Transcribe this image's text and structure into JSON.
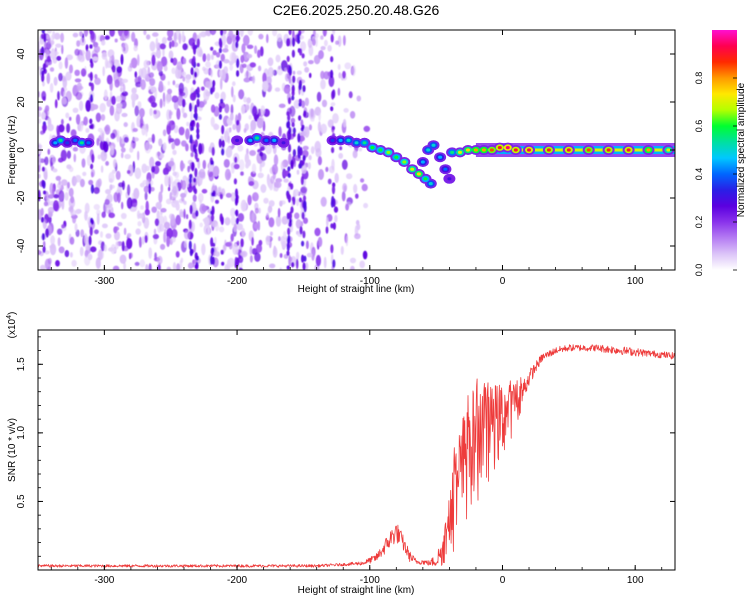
{
  "title": "C2E6.2025.250.20.48.G26",
  "colors": {
    "snr_line": "#ee3b3b",
    "axis": "#000000",
    "background": "#ffffff",
    "colormap": [
      "#ffffff",
      "#dcc4f8",
      "#b57cf3",
      "#8a33eb",
      "#5b00e0",
      "#2a1fe6",
      "#0066ff",
      "#00c8ff",
      "#00e0a0",
      "#00ff30",
      "#b4ff00",
      "#ffe800",
      "#ff9a00",
      "#ff2a00",
      "#ff0050",
      "#ff10d0"
    ]
  },
  "chart_data": [
    {
      "type": "heatmap",
      "name": "spectrogram",
      "title": "C2E6.2025.250.20.48.G26",
      "xlabel": "Height of straight line (km)",
      "ylabel": "Frequency (Hz)",
      "xlim": [
        -350,
        130
      ],
      "ylim": [
        -50,
        50
      ],
      "xticks": [
        -300,
        -200,
        -100,
        0,
        100
      ],
      "xtick_labels": [
        "-300",
        "-200",
        "-100",
        "0",
        "100"
      ],
      "yticks": [
        -40,
        -20,
        0,
        20,
        40
      ],
      "ytick_labels": [
        "-40",
        "-20",
        "0",
        "20",
        "40"
      ],
      "colorbar": {
        "label": "Normalized spectral amplitude",
        "range": [
          0.0,
          1.0
        ],
        "ticks": [
          0.0,
          0.2,
          0.4,
          0.6,
          0.8
        ],
        "tick_labels": [
          "0.0",
          "0.2",
          "0.4",
          "0.6",
          "0.8"
        ]
      },
      "noise_region_x": [
        -350,
        -120
      ],
      "ridge": [
        {
          "x": -337,
          "f": 3,
          "a": 0.45
        },
        {
          "x": -333,
          "f": 4,
          "a": 0.55
        },
        {
          "x": -328,
          "f": 3,
          "a": 0.35
        },
        {
          "x": -322,
          "f": 4,
          "a": 0.4
        },
        {
          "x": -317,
          "f": 3,
          "a": 0.55
        },
        {
          "x": -312,
          "f": 3,
          "a": 0.4
        },
        {
          "x": -200,
          "f": 4,
          "a": 0.3
        },
        {
          "x": -190,
          "f": 4,
          "a": 0.45
        },
        {
          "x": -185,
          "f": 5,
          "a": 0.55
        },
        {
          "x": -178,
          "f": 4,
          "a": 0.4
        },
        {
          "x": -172,
          "f": 4,
          "a": 0.45
        },
        {
          "x": -165,
          "f": 3,
          "a": 0.3
        },
        {
          "x": -128,
          "f": 4,
          "a": 0.35
        },
        {
          "x": -122,
          "f": 4,
          "a": 0.45
        },
        {
          "x": -116,
          "f": 4,
          "a": 0.5
        },
        {
          "x": -110,
          "f": 3,
          "a": 0.5
        },
        {
          "x": -104,
          "f": 3,
          "a": 0.55
        },
        {
          "x": -98,
          "f": 1,
          "a": 0.6
        },
        {
          "x": -92,
          "f": 0,
          "a": 0.6
        },
        {
          "x": -86,
          "f": -1,
          "a": 0.65
        },
        {
          "x": -80,
          "f": -3,
          "a": 0.6
        },
        {
          "x": -74,
          "f": -5,
          "a": 0.65
        },
        {
          "x": -68,
          "f": -8,
          "a": 0.7
        },
        {
          "x": -63,
          "f": -10,
          "a": 0.75
        },
        {
          "x": -58,
          "f": -12,
          "a": 0.6
        },
        {
          "x": -54,
          "f": -14,
          "a": 0.5
        },
        {
          "x": -60,
          "f": -5,
          "a": 0.45
        },
        {
          "x": -56,
          "f": 0,
          "a": 0.5
        },
        {
          "x": -52,
          "f": 2,
          "a": 0.5
        },
        {
          "x": -47,
          "f": -3,
          "a": 0.45
        },
        {
          "x": -43,
          "f": -8,
          "a": 0.4
        },
        {
          "x": -40,
          "f": -12,
          "a": 0.3
        },
        {
          "x": -38,
          "f": -1,
          "a": 0.55
        },
        {
          "x": -32,
          "f": -1,
          "a": 0.7
        },
        {
          "x": -26,
          "f": 0,
          "a": 0.75
        },
        {
          "x": -20,
          "f": 0,
          "a": 0.8
        },
        {
          "x": -14,
          "f": 0,
          "a": 0.8
        },
        {
          "x": -8,
          "f": 0,
          "a": 0.85
        },
        {
          "x": -2,
          "f": 1,
          "a": 0.9
        },
        {
          "x": 4,
          "f": 1,
          "a": 0.95
        },
        {
          "x": 10,
          "f": 0,
          "a": 0.9
        },
        {
          "x": 20,
          "f": 0,
          "a": 0.92
        },
        {
          "x": 35,
          "f": 0,
          "a": 0.88
        },
        {
          "x": 50,
          "f": 0,
          "a": 0.9
        },
        {
          "x": 65,
          "f": 0,
          "a": 0.85
        },
        {
          "x": 80,
          "f": 0,
          "a": 0.88
        },
        {
          "x": 95,
          "f": 0,
          "a": 0.9
        },
        {
          "x": 110,
          "f": 0,
          "a": 0.8
        },
        {
          "x": 125,
          "f": 0,
          "a": 0.7
        }
      ]
    },
    {
      "type": "line",
      "name": "snr",
      "xlabel": "Height of straight line (km)",
      "ylabel": "SNR (10 * v/v)",
      "y_multiplier": "(x10",
      "y_multiplier_exp": "4",
      "y_multiplier_close": ")",
      "xlim": [
        -350,
        130
      ],
      "ylim": [
        0,
        1.75
      ],
      "xticks": [
        -300,
        -200,
        -100,
        0,
        100
      ],
      "xtick_labels": [
        "-300",
        "-200",
        "-100",
        "0",
        "100"
      ],
      "yticks": [
        0.5,
        1.0,
        1.5
      ],
      "ytick_labels": [
        "0.5",
        "1.0",
        "1.5"
      ],
      "y_units": "x10^4",
      "x": [
        -350,
        -320,
        -290,
        -260,
        -230,
        -200,
        -170,
        -140,
        -120,
        -105,
        -95,
        -90,
        -85,
        -80,
        -75,
        -70,
        -65,
        -60,
        -55,
        -50,
        -45,
        -40,
        -35,
        -30,
        -25,
        -20,
        -15,
        -10,
        -5,
        0,
        5,
        10,
        15,
        20,
        25,
        30,
        40,
        50,
        60,
        70,
        80,
        90,
        100,
        110,
        120,
        130
      ],
      "y": [
        0.03,
        0.03,
        0.03,
        0.03,
        0.03,
        0.03,
        0.03,
        0.03,
        0.04,
        0.05,
        0.09,
        0.15,
        0.22,
        0.28,
        0.2,
        0.1,
        0.06,
        0.06,
        0.05,
        0.07,
        0.15,
        0.35,
        0.55,
        0.7,
        0.85,
        0.9,
        0.95,
        1.0,
        1.05,
        1.1,
        1.15,
        1.2,
        1.3,
        1.4,
        1.48,
        1.55,
        1.6,
        1.62,
        1.62,
        1.62,
        1.61,
        1.6,
        1.59,
        1.58,
        1.57,
        1.56
      ],
      "noise_amplitude": [
        0.01,
        0.01,
        0.01,
        0.01,
        0.01,
        0.01,
        0.01,
        0.01,
        0.01,
        0.015,
        0.03,
        0.05,
        0.07,
        0.08,
        0.06,
        0.04,
        0.02,
        0.02,
        0.02,
        0.05,
        0.12,
        0.25,
        0.4,
        0.45,
        0.45,
        0.45,
        0.4,
        0.35,
        0.3,
        0.28,
        0.22,
        0.18,
        0.1,
        0.06,
        0.04,
        0.03,
        0.025,
        0.025,
        0.025,
        0.025,
        0.03,
        0.03,
        0.03,
        0.025,
        0.025,
        0.025
      ]
    }
  ]
}
